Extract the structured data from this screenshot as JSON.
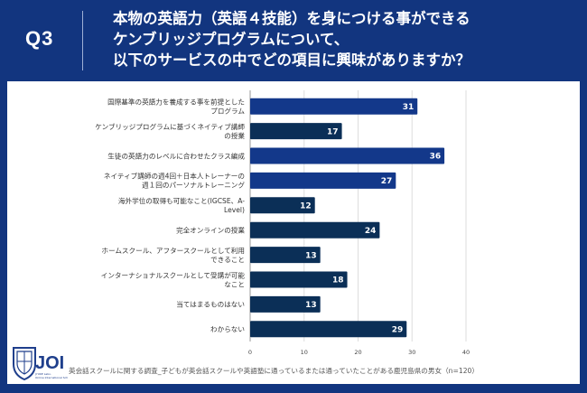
{
  "header": {
    "q_label": "Q3",
    "title_lines": [
      "本物の英語力（英語４技能）を身につける事ができる",
      "ケンブリッジプログラムについて、",
      "以下のサービスの中でどの項目に興味がありますか？"
    ]
  },
  "footer": {
    "note": "英会話スクールに関する調査_子どもが英会話スクールや英語塾に通っているまたは通っていたことがある鹿児島県の男女（n=120）"
  },
  "logo": {
    "text": "JOI",
    "subtext": "JYUKE Labo. Online International School"
  },
  "colors": {
    "header_bg": "#12357f",
    "bar_blue": "#13388a",
    "bar_navy": "#0b2f57"
  },
  "chart_data": {
    "type": "bar",
    "orientation": "horizontal",
    "categories": [
      [
        "国際基準の英語力を養成する事を前提とした",
        "プログラム"
      ],
      [
        "ケンブリッジプログラムに基づくネイティブ講師",
        "の授業"
      ],
      [
        "生徒の英語力のレベルに合わせたクラス編成"
      ],
      [
        "ネイティブ講師の週4回＋日本人トレーナーの",
        "週１回のパーソナルトレーニング"
      ],
      [
        "海外学位の取得も可能なこと(IGCSE、A-",
        "Level)"
      ],
      [
        "完全オンラインの授業"
      ],
      [
        "ホームスクール、アフタースクールとして利用",
        "できること"
      ],
      [
        "インターナショナルスクールとして受講が可能",
        "なこと"
      ],
      [
        "当てはまるものはない"
      ],
      [
        "わからない"
      ]
    ],
    "values": [
      31,
      17,
      36,
      27,
      12,
      24,
      13,
      18,
      13,
      29
    ],
    "bar_colors": [
      "#13388a",
      "#0b2f57",
      "#13388a",
      "#13388a",
      "#0b2f57",
      "#0b2f57",
      "#0b2f57",
      "#0b2f57",
      "#0b2f57",
      "#0b2f57"
    ],
    "xlim": [
      0,
      40
    ],
    "xticks": [
      "0",
      "10",
      "20",
      "30",
      "40"
    ],
    "grid": true
  }
}
